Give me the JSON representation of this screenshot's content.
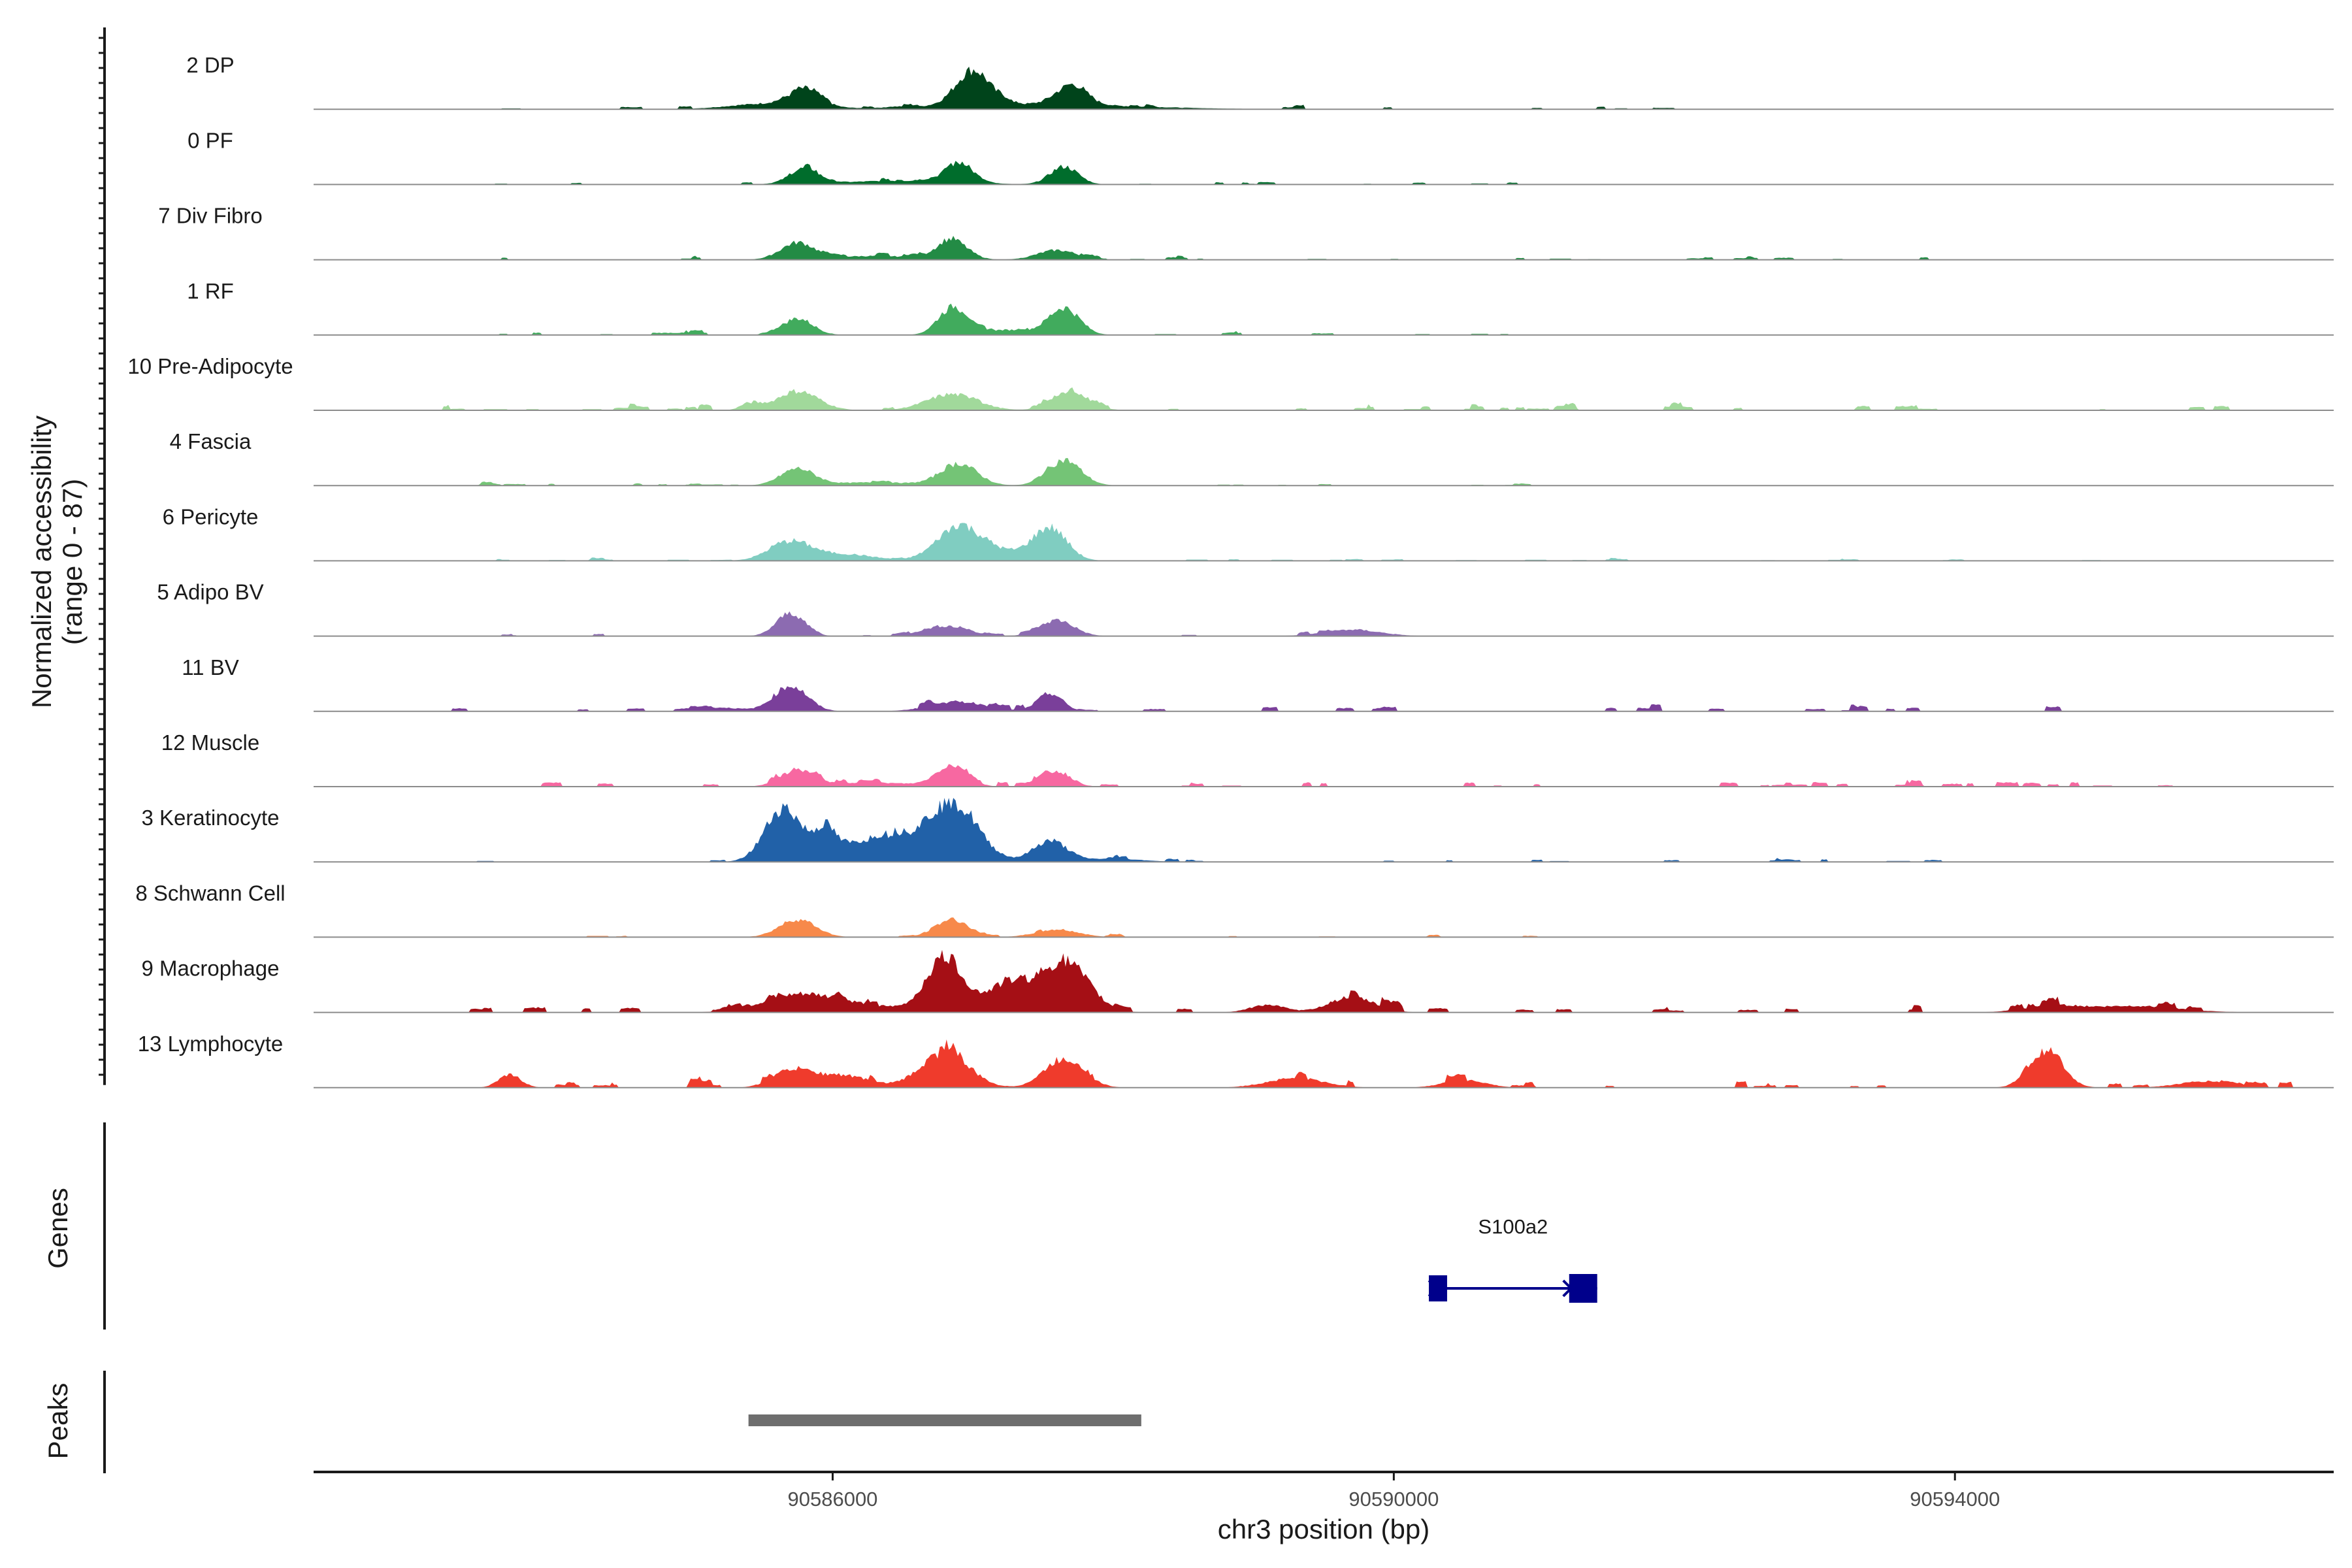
{
  "chart_data": {
    "type": "area",
    "ylabel": "Normalized accessibility\n(range 0 - 87)",
    "xlabel": "chr3 position (bp)",
    "x_range": [
      90582300,
      90596700
    ],
    "x_ticks": [
      90586000,
      90590000,
      90594000
    ],
    "x_tick_labels": [
      "90586000",
      "90590000",
      "90594000"
    ],
    "tracks": [
      {
        "name": "2 DP",
        "color": "#00441b",
        "peaks": [
          [
            90585800,
            0.25,
            120
          ],
          [
            90587000,
            0.55,
            120
          ],
          [
            90587700,
            0.3,
            110
          ],
          [
            90585500,
            0.08,
            250
          ],
          [
            90587400,
            0.08,
            700
          ]
        ],
        "noise": 0.03,
        "noise_range": [
          90583500,
          90592000
        ]
      },
      {
        "name": "0 PF",
        "color": "#006d2c",
        "peaks": [
          [
            90585800,
            0.22,
            110
          ],
          [
            90586900,
            0.3,
            100
          ],
          [
            90587650,
            0.28,
            100
          ],
          [
            90586500,
            0.06,
            400
          ]
        ],
        "noise": 0.03,
        "noise_range": [
          90583500,
          90591000
        ]
      },
      {
        "name": "7 Div Fibro",
        "color": "#238b45",
        "peaks": [
          [
            90585750,
            0.26,
            120
          ],
          [
            90586850,
            0.3,
            110
          ],
          [
            90587600,
            0.15,
            140
          ],
          [
            90586300,
            0.06,
            300
          ]
        ],
        "noise": 0.03,
        "noise_range": [
          90583500,
          90594000
        ]
      },
      {
        "name": "1 RF",
        "color": "#41ab5d",
        "peaks": [
          [
            90585750,
            0.26,
            110
          ],
          [
            90586850,
            0.42,
            100
          ],
          [
            90587650,
            0.42,
            110
          ],
          [
            90587250,
            0.08,
            200
          ]
        ],
        "noise": 0.03,
        "noise_range": [
          90583500,
          90591000
        ]
      },
      {
        "name": "10 Pre-Adipocyte",
        "color": "#a1d99b",
        "peaks": [
          [
            90585750,
            0.3,
            150
          ],
          [
            90586850,
            0.25,
            180
          ],
          [
            90587700,
            0.28,
            130
          ],
          [
            90585400,
            0.1,
            60
          ]
        ],
        "noise": 0.05,
        "noise_range": [
          90583000,
          90596000
        ]
      },
      {
        "name": "4 Fascia",
        "color": "#74c476",
        "peaks": [
          [
            90585750,
            0.26,
            120
          ],
          [
            90586900,
            0.34,
            130
          ],
          [
            90587650,
            0.4,
            120
          ],
          [
            90586300,
            0.05,
            300
          ]
        ],
        "noise": 0.02,
        "noise_range": [
          90583500,
          90591000
        ]
      },
      {
        "name": "6 Pericyte",
        "color": "#80cdc1",
        "peaks": [
          [
            90585700,
            0.3,
            150
          ],
          [
            90586100,
            0.1,
            200
          ],
          [
            90586900,
            0.5,
            160
          ],
          [
            90587550,
            0.5,
            120
          ],
          [
            90587200,
            0.12,
            200
          ]
        ],
        "noise": 0.02,
        "noise_range": [
          90583000,
          90595000
        ]
      },
      {
        "name": "5 Adipo BV",
        "color": "#8c6bb1",
        "peaks": [
          [
            90585700,
            0.36,
            100
          ],
          [
            90586800,
            0.16,
            160
          ],
          [
            90587600,
            0.25,
            120
          ],
          [
            90589700,
            0.1,
            200
          ]
        ],
        "noise": 0.03,
        "noise_range": [
          90583500,
          90590300
        ]
      },
      {
        "name": "11 BV",
        "color": "#7a3f9a",
        "peaks": [
          [
            90585700,
            0.4,
            120
          ],
          [
            90586900,
            0.15,
            200
          ],
          [
            90587550,
            0.28,
            90
          ],
          [
            90585200,
            0.06,
            150
          ]
        ],
        "noise": 0.06,
        "noise_range": [
          90583200,
          90595000
        ]
      },
      {
        "name": "12 Muscle",
        "color": "#f768a1",
        "peaks": [
          [
            90585750,
            0.26,
            120
          ],
          [
            90586850,
            0.33,
            110
          ],
          [
            90587600,
            0.24,
            100
          ],
          [
            90586300,
            0.06,
            300
          ]
        ],
        "noise": 0.05,
        "noise_range": [
          90583500,
          90595700
        ]
      },
      {
        "name": "3 Keratinocyte",
        "color": "#2161a8",
        "peaks": [
          [
            90585650,
            0.85,
            130
          ],
          [
            90585950,
            0.45,
            80
          ],
          [
            90586350,
            0.4,
            220
          ],
          [
            90586850,
            0.9,
            180
          ],
          [
            90587550,
            0.33,
            120
          ],
          [
            90588000,
            0.05,
            200
          ]
        ],
        "noise": 0.03,
        "noise_range": [
          90583200,
          90594000
        ]
      },
      {
        "name": "8 Schwann Cell",
        "color": "#f7894a",
        "peaks": [
          [
            90585750,
            0.28,
            130
          ],
          [
            90586850,
            0.28,
            120
          ],
          [
            90587600,
            0.12,
            150
          ]
        ],
        "noise": 0.02,
        "noise_range": [
          90584000,
          90591000
        ]
      },
      {
        "name": "9 Macrophage",
        "color": "#a50f15",
        "peaks": [
          [
            90586800,
            0.85,
            130
          ],
          [
            90587250,
            0.45,
            150
          ],
          [
            90587650,
            0.8,
            170
          ],
          [
            90585750,
            0.25,
            250
          ],
          [
            90586200,
            0.1,
            300
          ],
          [
            90589700,
            0.24,
            160
          ],
          [
            90589100,
            0.12,
            120
          ],
          [
            90594700,
            0.1,
            200
          ],
          [
            90595300,
            0.1,
            300
          ]
        ],
        "noise": 0.07,
        "noise_range": [
          90583400,
          90596400
        ]
      },
      {
        "name": "13 Lymphocyte",
        "color": "#ef3b2c",
        "peaks": [
          [
            90586800,
            0.55,
            170
          ],
          [
            90587650,
            0.45,
            140
          ],
          [
            90585700,
            0.25,
            130
          ],
          [
            90586050,
            0.2,
            200
          ],
          [
            90594650,
            0.55,
            120
          ],
          [
            90583700,
            0.2,
            80
          ],
          [
            90589300,
            0.15,
            200
          ],
          [
            90590500,
            0.12,
            150
          ],
          [
            90595800,
            0.1,
            200
          ]
        ],
        "noise": 0.07,
        "noise_range": [
          90583400,
          90596400
        ]
      }
    ],
    "genes": [
      {
        "name": "S100a2",
        "start": 90590250,
        "end": 90591450,
        "strand": "+",
        "exons": [
          [
            90590250,
            90590380
          ],
          [
            90591250,
            90591450
          ]
        ],
        "color": "#00008b"
      }
    ],
    "peaks": [
      {
        "start": 90585400,
        "end": 90588200,
        "color": "#6e6e6e"
      }
    ],
    "panel_labels": {
      "genes": "Genes",
      "peaks": "Peaks"
    }
  }
}
